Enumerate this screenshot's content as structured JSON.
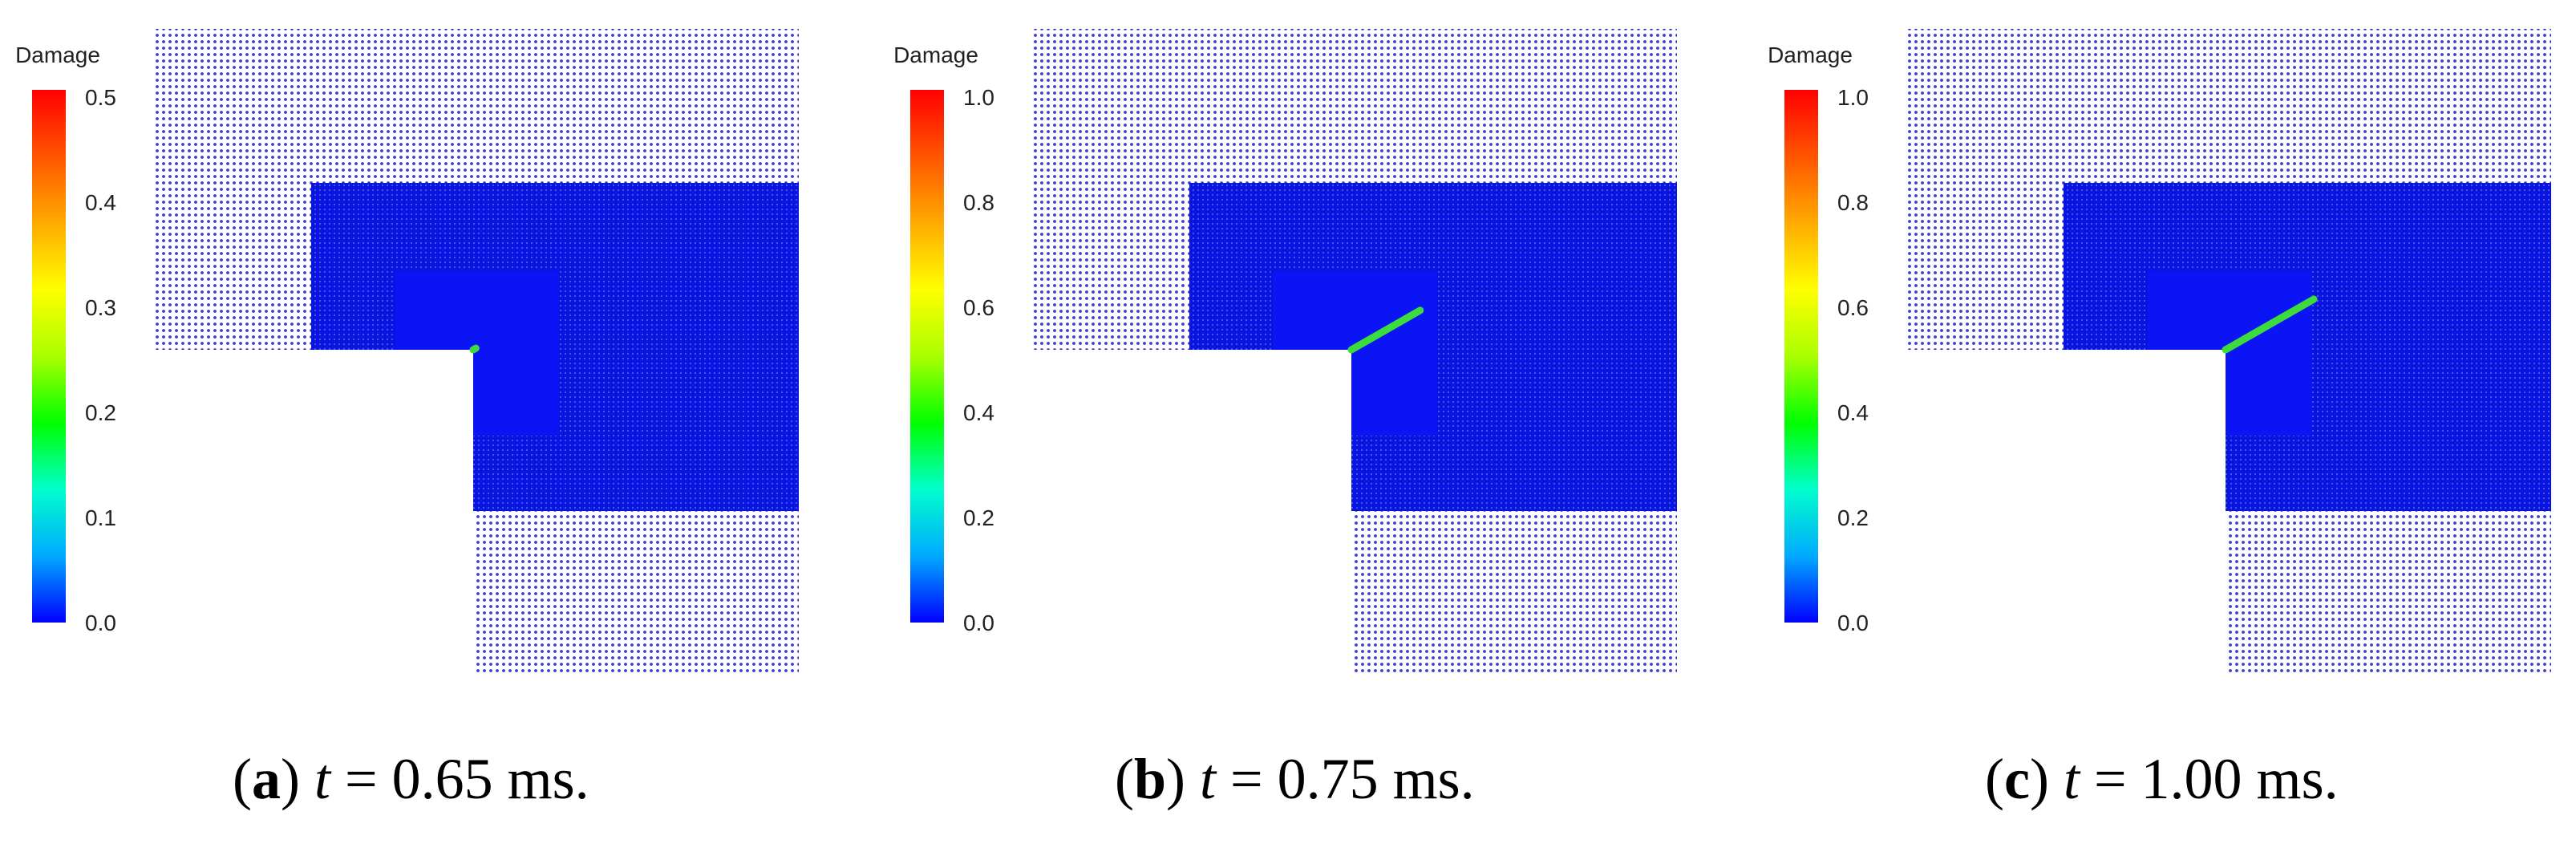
{
  "colorbar": {
    "title": "Damage",
    "gradient_colors": [
      "#0000ff",
      "#00aaff",
      "#00ffcc",
      "#00ff00",
      "#aaff00",
      "#ffff00",
      "#ffaa00",
      "#ff5500",
      "#ff0000"
    ]
  },
  "mesh_colors": {
    "coarse_dot": "#3b3bd0",
    "dense_fill": "#0a14e0",
    "crack": "#3ddc3d"
  },
  "panels": [
    {
      "letter": "a",
      "t_label": "t",
      "time_text": " = 0.65 ms.",
      "ticks": [
        "0.5",
        "0.4",
        "0.3",
        "0.2",
        "0.1",
        "0.0"
      ],
      "crack_length_fraction": 0.03
    },
    {
      "letter": "b",
      "t_label": "t",
      "time_text": " = 0.75 ms.",
      "ticks": [
        "1.0",
        "0.8",
        "0.6",
        "0.4",
        "0.2",
        "0.0"
      ],
      "crack_length_fraction": 0.78
    },
    {
      "letter": "c",
      "t_label": "t",
      "time_text": " = 1.00 ms.",
      "ticks": [
        "1.0",
        "0.8",
        "0.6",
        "0.4",
        "0.2",
        "0.0"
      ],
      "crack_length_fraction": 1.0
    }
  ]
}
